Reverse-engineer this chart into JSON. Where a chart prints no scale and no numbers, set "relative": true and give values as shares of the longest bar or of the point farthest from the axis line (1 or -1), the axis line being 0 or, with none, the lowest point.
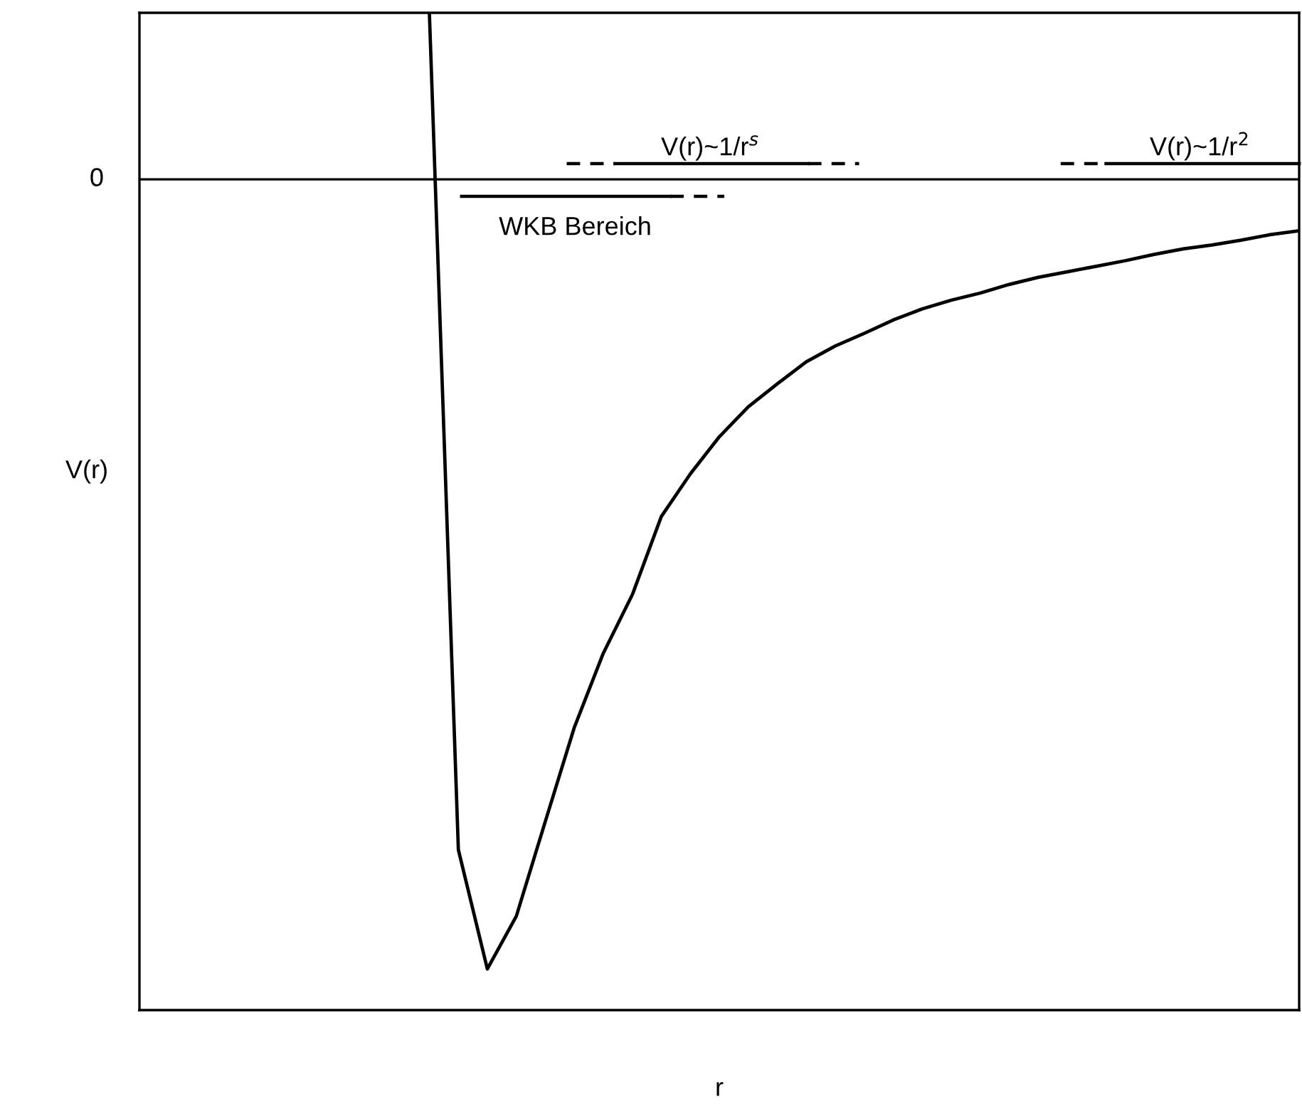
{
  "chart_data": {
    "type": "line",
    "relative": true,
    "xlabel": "r",
    "ylabel": "V(r)",
    "categories": [
      null,
      null,
      null,
      null,
      null,
      null,
      null,
      null,
      null,
      null,
      null,
      null,
      null,
      null,
      null,
      null,
      null,
      null,
      null,
      null,
      null,
      null,
      null,
      null,
      null,
      null,
      null,
      null,
      null,
      null,
      null,
      null,
      null,
      null,
      null,
      null,
      null,
      null,
      null,
      null,
      null
    ],
    "tick_labels": false,
    "grid": false,
    "legend": false,
    "ref_lines": [
      {
        "axis": "y",
        "value": 0,
        "label": "0",
        "color": "#000000"
      }
    ],
    "series": [
      {
        "color": "#000000",
        "line_style": "solid",
        "values": [
          null,
          null,
          null,
          null,
          null,
          null,
          null,
          null,
          null,
          null,
          0.211,
          -0.849,
          -1,
          -0.933,
          -0.813,
          -0.694,
          -0.6,
          -0.526,
          -0.427,
          -0.373,
          -0.326,
          -0.288,
          -0.259,
          -0.231,
          -0.211,
          -0.195,
          -0.178,
          -0.164,
          -0.153,
          -0.144,
          -0.133,
          -0.124,
          -0.117,
          -0.11,
          -0.103,
          -0.095,
          -0.088,
          -0.083,
          -0.077,
          -0.07,
          -0.065
        ]
      }
    ],
    "annotations": [
      "V(r)~1/r$^{s}$",
      "V(r)~1/r$^{2}$",
      "WKB Bereich"
    ]
  }
}
